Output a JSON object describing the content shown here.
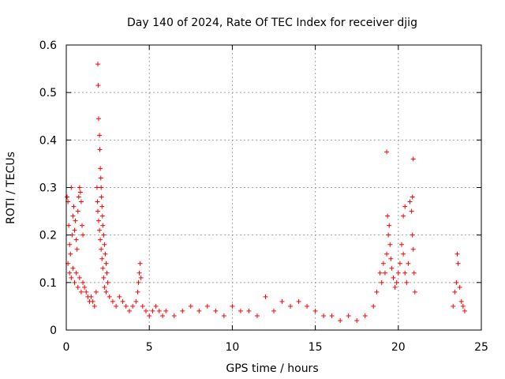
{
  "chart_data": {
    "type": "scatter",
    "title": "Day 140 of 2024, Rate Of TEC Index for receiver djig",
    "xlabel": "GPS time / hours",
    "ylabel": "ROTI / TECUs",
    "xlim": [
      0,
      25
    ],
    "ylim": [
      0,
      0.6
    ],
    "xticks": [
      0,
      5,
      10,
      15,
      20,
      25
    ],
    "xtick_labels": [
      "0",
      "5",
      "10",
      "15",
      "20",
      "25"
    ],
    "yticks": [
      0,
      0.1,
      0.2,
      0.3,
      0.4,
      0.5,
      0.6
    ],
    "ytick_labels": [
      "0",
      "0.1",
      "0.2",
      "0.3",
      "0.4",
      "0.5",
      "0.6"
    ],
    "grid": true,
    "marker": "+",
    "marker_color": "#ff0000",
    "series": [
      {
        "name": "ROTI",
        "points": [
          [
            0.05,
            0.28
          ],
          [
            0.1,
            0.27
          ],
          [
            0.15,
            0.22
          ],
          [
            0.2,
            0.18
          ],
          [
            0.25,
            0.16
          ],
          [
            0.3,
            0.3
          ],
          [
            0.35,
            0.2
          ],
          [
            0.4,
            0.24
          ],
          [
            0.45,
            0.26
          ],
          [
            0.5,
            0.21
          ],
          [
            0.55,
            0.23
          ],
          [
            0.6,
            0.19
          ],
          [
            0.65,
            0.17
          ],
          [
            0.7,
            0.25
          ],
          [
            0.75,
            0.28
          ],
          [
            0.8,
            0.3
          ],
          [
            0.85,
            0.29
          ],
          [
            0.9,
            0.27
          ],
          [
            0.95,
            0.22
          ],
          [
            1.0,
            0.2
          ],
          [
            0.1,
            0.14
          ],
          [
            0.2,
            0.12
          ],
          [
            0.3,
            0.11
          ],
          [
            0.4,
            0.13
          ],
          [
            0.5,
            0.1
          ],
          [
            0.6,
            0.12
          ],
          [
            0.7,
            0.09
          ],
          [
            0.8,
            0.11
          ],
          [
            0.9,
            0.08
          ],
          [
            1.0,
            0.1
          ],
          [
            1.1,
            0.09
          ],
          [
            1.2,
            0.08
          ],
          [
            1.3,
            0.07
          ],
          [
            1.4,
            0.06
          ],
          [
            1.5,
            0.07
          ],
          [
            1.6,
            0.06
          ],
          [
            1.7,
            0.05
          ],
          [
            1.8,
            0.08
          ],
          [
            1.9,
            0.56
          ],
          [
            1.92,
            0.515
          ],
          [
            1.95,
            0.445
          ],
          [
            2.0,
            0.41
          ],
          [
            2.02,
            0.38
          ],
          [
            2.05,
            0.34
          ],
          [
            2.08,
            0.32
          ],
          [
            2.1,
            0.3
          ],
          [
            2.12,
            0.28
          ],
          [
            2.15,
            0.26
          ],
          [
            2.18,
            0.24
          ],
          [
            2.2,
            0.22
          ],
          [
            2.25,
            0.2
          ],
          [
            2.3,
            0.18
          ],
          [
            2.35,
            0.16
          ],
          [
            2.4,
            0.14
          ],
          [
            2.45,
            0.12
          ],
          [
            2.5,
            0.1
          ],
          [
            1.85,
            0.3
          ],
          [
            1.88,
            0.27
          ],
          [
            1.9,
            0.25
          ],
          [
            1.95,
            0.23
          ],
          [
            2.0,
            0.21
          ],
          [
            2.05,
            0.19
          ],
          [
            2.1,
            0.17
          ],
          [
            2.15,
            0.15
          ],
          [
            2.2,
            0.13
          ],
          [
            2.25,
            0.11
          ],
          [
            2.3,
            0.09
          ],
          [
            2.4,
            0.08
          ],
          [
            2.6,
            0.07
          ],
          [
            2.8,
            0.06
          ],
          [
            3.0,
            0.05
          ],
          [
            3.2,
            0.07
          ],
          [
            3.4,
            0.06
          ],
          [
            3.6,
            0.05
          ],
          [
            3.8,
            0.04
          ],
          [
            4.0,
            0.05
          ],
          [
            4.2,
            0.06
          ],
          [
            4.3,
            0.08
          ],
          [
            4.35,
            0.1
          ],
          [
            4.4,
            0.12
          ],
          [
            4.45,
            0.14
          ],
          [
            4.5,
            0.11
          ],
          [
            4.6,
            0.05
          ],
          [
            4.8,
            0.04
          ],
          [
            5.0,
            0.03
          ],
          [
            5.2,
            0.04
          ],
          [
            5.4,
            0.05
          ],
          [
            5.6,
            0.04
          ],
          [
            5.8,
            0.03
          ],
          [
            6.0,
            0.04
          ],
          [
            6.5,
            0.03
          ],
          [
            7.0,
            0.04
          ],
          [
            7.5,
            0.05
          ],
          [
            8.0,
            0.04
          ],
          [
            8.5,
            0.05
          ],
          [
            9.0,
            0.04
          ],
          [
            9.5,
            0.03
          ],
          [
            10.0,
            0.05
          ],
          [
            10.5,
            0.04
          ],
          [
            11.0,
            0.04
          ],
          [
            11.5,
            0.03
          ],
          [
            12.0,
            0.07
          ],
          [
            12.5,
            0.04
          ],
          [
            13.0,
            0.06
          ],
          [
            13.5,
            0.05
          ],
          [
            14.0,
            0.06
          ],
          [
            14.5,
            0.05
          ],
          [
            15.0,
            0.04
          ],
          [
            15.5,
            0.03
          ],
          [
            16.0,
            0.03
          ],
          [
            16.5,
            0.02
          ],
          [
            17.0,
            0.03
          ],
          [
            17.5,
            0.02
          ],
          [
            18.0,
            0.03
          ],
          [
            18.5,
            0.05
          ],
          [
            18.7,
            0.08
          ],
          [
            18.9,
            0.12
          ],
          [
            19.0,
            0.1
          ],
          [
            19.1,
            0.14
          ],
          [
            19.2,
            0.12
          ],
          [
            19.3,
            0.16
          ],
          [
            19.4,
            0.2
          ],
          [
            19.45,
            0.22
          ],
          [
            19.5,
            0.18
          ],
          [
            19.55,
            0.15
          ],
          [
            19.6,
            0.13
          ],
          [
            19.7,
            0.11
          ],
          [
            19.8,
            0.09
          ],
          [
            19.9,
            0.1
          ],
          [
            20.0,
            0.12
          ],
          [
            20.1,
            0.14
          ],
          [
            20.2,
            0.18
          ],
          [
            20.3,
            0.16
          ],
          [
            20.4,
            0.12
          ],
          [
            20.5,
            0.1
          ],
          [
            20.6,
            0.14
          ],
          [
            20.7,
            0.27
          ],
          [
            20.8,
            0.25
          ],
          [
            20.85,
            0.2
          ],
          [
            20.9,
            0.17
          ],
          [
            20.95,
            0.12
          ],
          [
            21.0,
            0.08
          ],
          [
            19.3,
            0.375
          ],
          [
            19.35,
            0.24
          ],
          [
            20.3,
            0.24
          ],
          [
            20.4,
            0.26
          ],
          [
            20.9,
            0.36
          ],
          [
            20.85,
            0.28
          ],
          [
            23.3,
            0.05
          ],
          [
            23.4,
            0.08
          ],
          [
            23.5,
            0.1
          ],
          [
            23.55,
            0.16
          ],
          [
            23.6,
            0.14
          ],
          [
            23.7,
            0.09
          ],
          [
            23.8,
            0.06
          ],
          [
            23.9,
            0.05
          ],
          [
            24.0,
            0.04
          ]
        ]
      }
    ]
  }
}
